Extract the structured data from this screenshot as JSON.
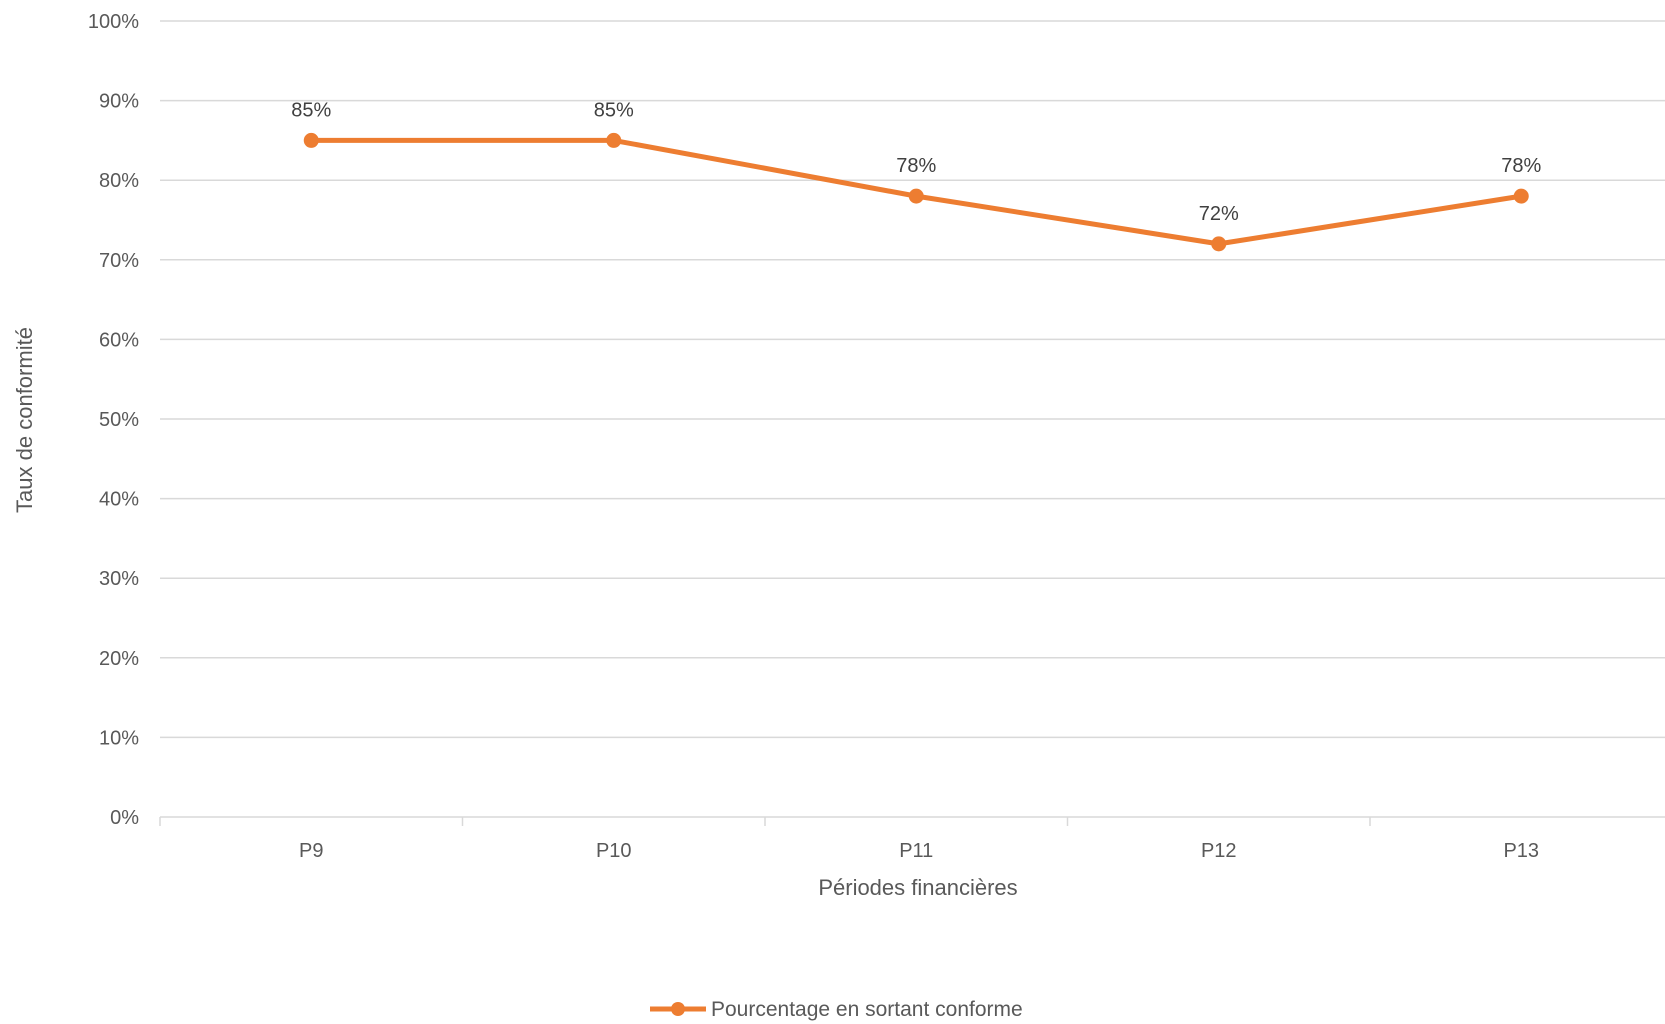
{
  "chart_data": {
    "type": "line",
    "categories": [
      "P9",
      "P10",
      "P11",
      "P12",
      "P13"
    ],
    "series": [
      {
        "name": "Pourcentage en sortant conforme",
        "values": [
          0.85,
          0.85,
          0.78,
          0.72,
          0.78
        ],
        "data_labels": [
          "85%",
          "85%",
          "78%",
          "72%",
          "78%"
        ],
        "color": "#ED7D31"
      }
    ],
    "xlabel": "Périodes financières",
    "ylabel": "Taux de conformité",
    "ylim": [
      0,
      1
    ],
    "yticks": [
      "0%",
      "10%",
      "20%",
      "30%",
      "40%",
      "50%",
      "60%",
      "70%",
      "80%",
      "90%",
      "100%"
    ],
    "grid": true,
    "legend_position": "bottom",
    "gridline_color": "#D9D9D9"
  }
}
